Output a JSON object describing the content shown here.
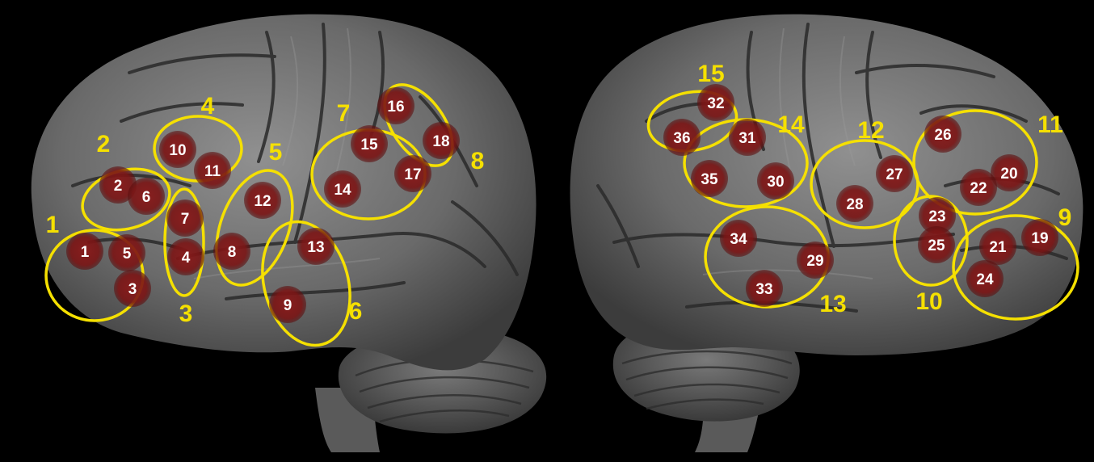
{
  "colors": {
    "background": "#000000",
    "brain_base": "#6e6e6e",
    "brain_light": "#8a8a8a",
    "brain_dark": "#3f3f3f",
    "sulcus": "#262626",
    "roi_fill": "#7a1414",
    "roi_text": "#ffffff",
    "cluster_outline": "#f5e000",
    "cluster_text": "#f5e000"
  },
  "left_hemisphere": {
    "roi_labels": [
      "1",
      "2",
      "3",
      "4",
      "5",
      "6",
      "7",
      "8",
      "9",
      "10",
      "11",
      "12",
      "13",
      "14",
      "15",
      "16",
      "17",
      "18"
    ],
    "cluster_labels": [
      "1",
      "2",
      "3",
      "4",
      "5",
      "6",
      "7",
      "8"
    ]
  },
  "right_hemisphere": {
    "roi_labels": [
      "19",
      "20",
      "21",
      "22",
      "23",
      "24",
      "25",
      "26",
      "27",
      "28",
      "29",
      "30",
      "31",
      "32",
      "33",
      "34",
      "35",
      "36"
    ],
    "cluster_labels": [
      "9",
      "10",
      "11",
      "12",
      "13",
      "14",
      "15"
    ]
  }
}
